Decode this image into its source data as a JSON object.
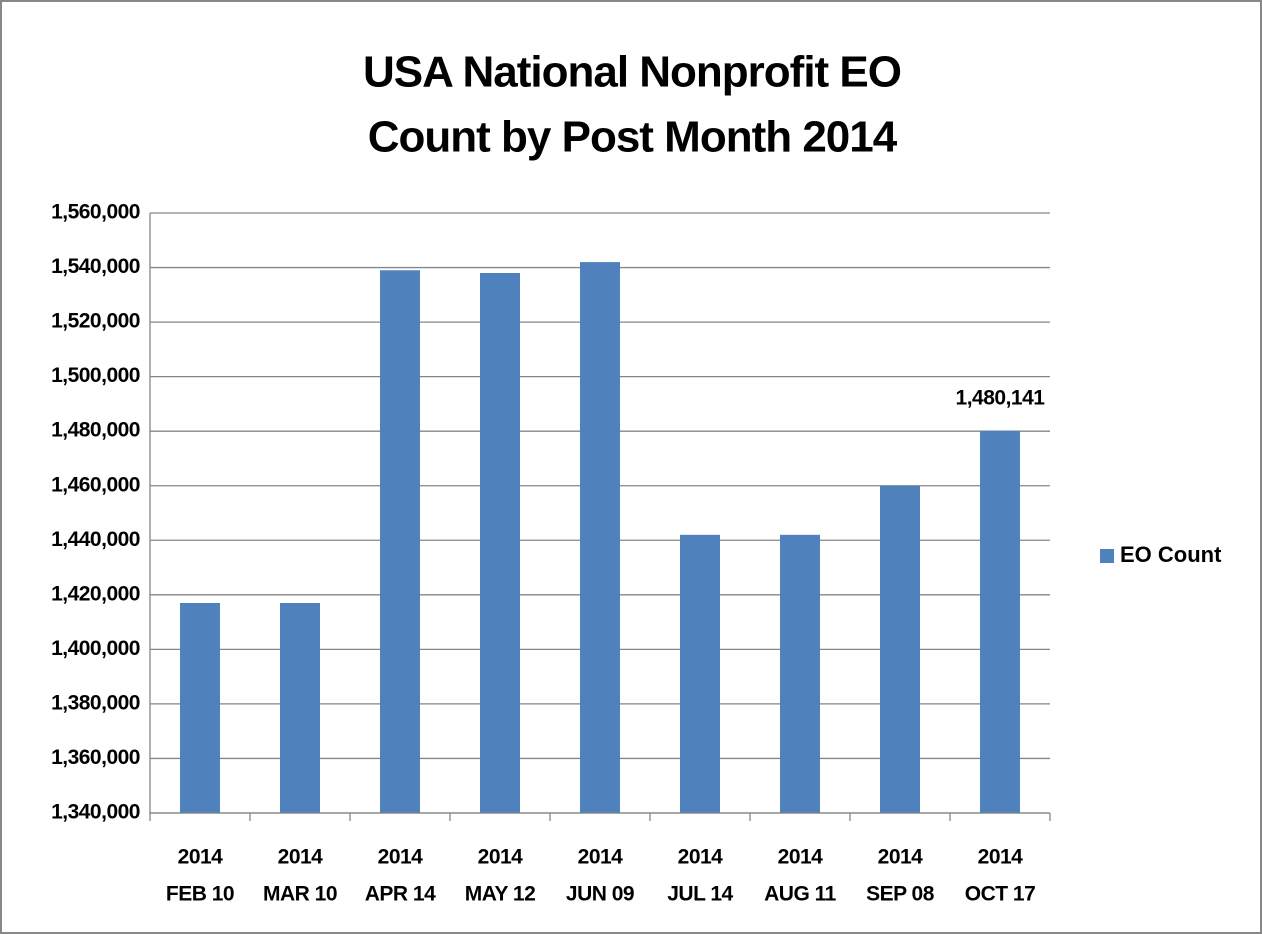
{
  "chart_data": {
    "type": "bar",
    "title": [
      "USA National Nonprofit EO",
      "Count by Post Month 2014"
    ],
    "categories": [
      [
        "2014",
        "FEB 10"
      ],
      [
        "2014",
        "MAR 10"
      ],
      [
        "2014",
        "APR 14"
      ],
      [
        "2014",
        "MAY 12"
      ],
      [
        "2014",
        "JUN 09"
      ],
      [
        "2014",
        "JUL 14"
      ],
      [
        "2014",
        "AUG 11"
      ],
      [
        "2014",
        "SEP 08"
      ],
      [
        "2014",
        "OCT 17"
      ]
    ],
    "series": [
      {
        "name": "EO Count",
        "color": "#4f81bd",
        "values": [
          1417000,
          1417000,
          1539000,
          1538000,
          1542000,
          1442000,
          1442000,
          1460000,
          1480141
        ],
        "value_labels": [
          null,
          null,
          null,
          null,
          null,
          null,
          null,
          null,
          "1,480,141"
        ]
      }
    ],
    "ylim": [
      1340000,
      1560000
    ],
    "yticks": [
      {
        "value": 1340000,
        "label": "1,340,000"
      },
      {
        "value": 1360000,
        "label": "1,360,000"
      },
      {
        "value": 1380000,
        "label": "1,380,000"
      },
      {
        "value": 1400000,
        "label": "1,400,000"
      },
      {
        "value": 1420000,
        "label": "1,420,000"
      },
      {
        "value": 1440000,
        "label": "1,440,000"
      },
      {
        "value": 1460000,
        "label": "1,460,000"
      },
      {
        "value": 1480000,
        "label": "1,480,000"
      },
      {
        "value": 1500000,
        "label": "1,500,000"
      },
      {
        "value": 1520000,
        "label": "1,520,000"
      },
      {
        "value": 1540000,
        "label": "1,540,000"
      },
      {
        "value": 1560000,
        "label": "1,560,000"
      }
    ],
    "grid": true,
    "legend": "right"
  }
}
